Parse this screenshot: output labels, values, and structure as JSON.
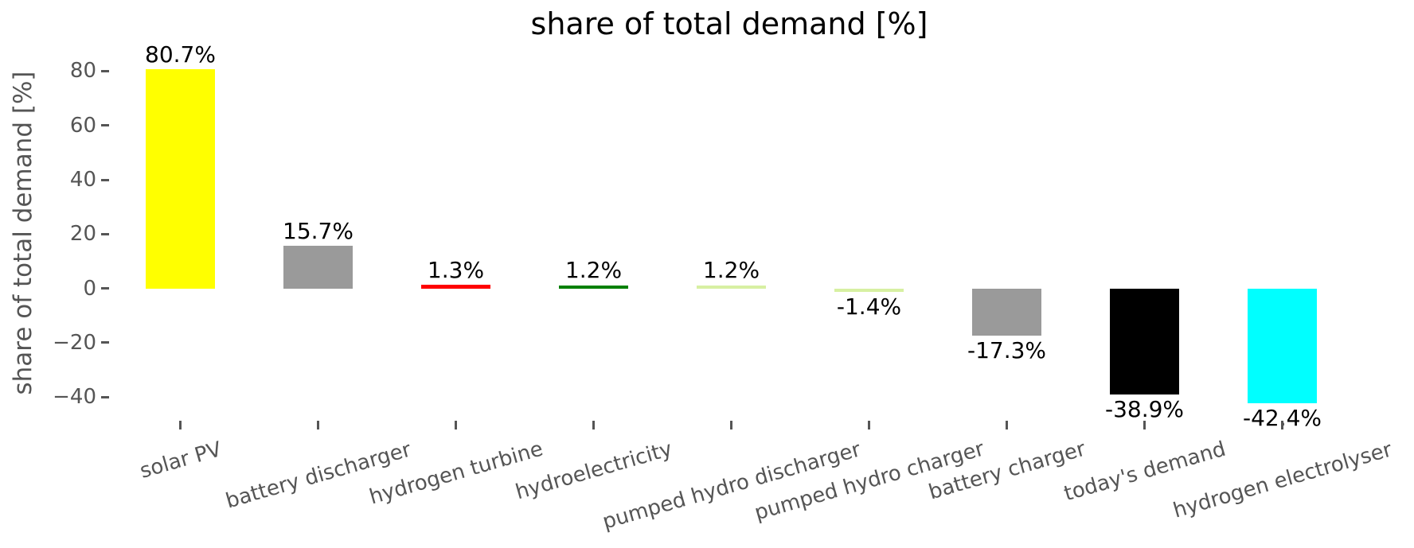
{
  "chart_data": {
    "type": "bar",
    "title": "share of total demand [%]",
    "ylabel": "share of total demand [%]",
    "xlabel": "",
    "categories": [
      "solar PV",
      "battery discharger",
      "hydrogen turbine",
      "hydroelectricity",
      "pumped hydro discharger",
      "pumped hydro charger",
      "battery charger",
      "today's demand",
      "hydrogen electrolyser"
    ],
    "values": [
      80.7,
      15.7,
      1.3,
      1.2,
      1.2,
      -1.4,
      -17.3,
      -38.9,
      -42.4
    ],
    "bar_labels": [
      "80.7%",
      "15.7%",
      "1.3%",
      "1.2%",
      "1.2%",
      "-1.4%",
      "-17.3%",
      "-38.9%",
      "-42.4%"
    ],
    "bar_colors": [
      "#ffff00",
      "#9a9a9a",
      "#ff0000",
      "#008000",
      "#d7f0a2",
      "#d7f0a2",
      "#9a9a9a",
      "#000000",
      "#00ffff"
    ],
    "yticks": [
      80,
      60,
      40,
      20,
      0,
      -20,
      -40
    ],
    "ytick_labels": [
      "80",
      "60",
      "40",
      "20",
      "0",
      "−20",
      "−40"
    ],
    "ylim": [
      -48.7,
      88.6
    ],
    "grid": false,
    "legend": false,
    "xtick_rotation_deg": 16,
    "axis_text_color": "#555555",
    "annotation_color": "#000000",
    "background_color": "#ffffff"
  }
}
